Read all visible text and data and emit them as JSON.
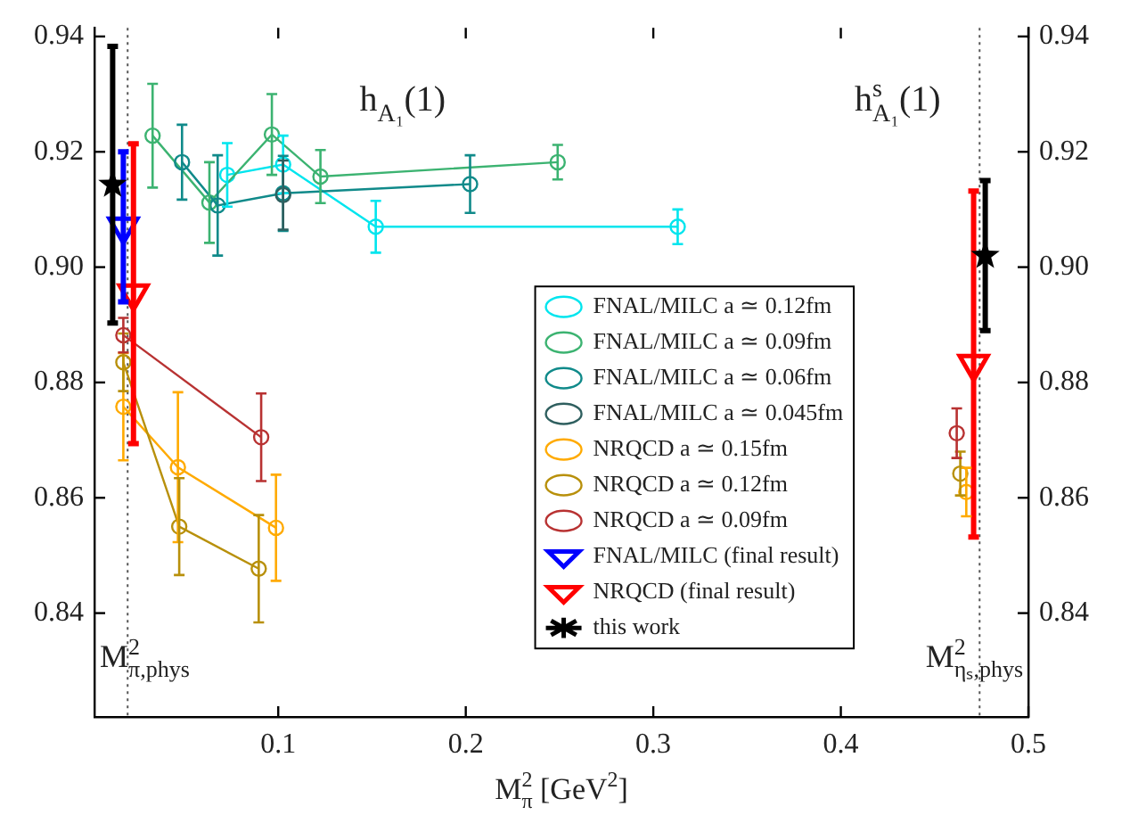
{
  "chart_data": {
    "type": "line",
    "xlabel": "M$^{2}$$_{π}$ [GeV$^{2}$]",
    "xlim": [
      0.002,
      0.5
    ],
    "xticks": [
      0.1,
      0.2,
      0.3,
      0.4,
      0.5
    ],
    "ylim": [
      0.822,
      0.9415
    ],
    "yticks": [
      0.84,
      0.86,
      0.88,
      {
        "value": 0.9,
        "label": "0.90"
      },
      0.92,
      0.94
    ],
    "y2lim": [
      0.822,
      0.9415
    ],
    "y2ticks": [
      0.84,
      0.86,
      0.88,
      {
        "value": 0.9,
        "label": "0.90"
      },
      0.92,
      0.94
    ],
    "grid": false,
    "legend": "center right",
    "annotations": [
      "h$_{A₁}$(1)",
      "h$^{s}$$_{A₁}$(1)"
    ],
    "ref_lines": [
      {
        "axis": "x",
        "value": 0.0197,
        "label": "M$^{2}$$_{π,phys}$",
        "color": "#555555",
        "line_style": "dotted"
      },
      {
        "axis": "x",
        "value": 0.474,
        "label": "M$^{2}$$_{ηₛ,phys}$",
        "color": "#555555",
        "line_style": "dotted"
      }
    ],
    "series": [
      {
        "name": "FNAL/MILC a ≃ 0.12fm",
        "marker": "circle",
        "color": "#00e5ee",
        "x": [
          0.0728,
          0.1026,
          0.152,
          0.313
        ],
        "values": [
          0.916,
          0.9178,
          0.907,
          0.907
        ],
        "errors": [
          0.0055,
          0.005,
          0.0045,
          0.003
        ]
      },
      {
        "name": "FNAL/MILC a ≃ 0.09fm",
        "marker": "circle",
        "color": "#3cb371",
        "x": [
          0.033,
          0.0633,
          0.0966,
          0.1225,
          0.249
        ],
        "values": [
          0.9228,
          0.9112,
          0.923,
          0.9157,
          0.9182
        ],
        "errors": [
          0.009,
          0.007,
          0.007,
          0.0046,
          0.003
        ]
      },
      {
        "name": "FNAL/MILC a ≃ 0.06fm",
        "marker": "circle",
        "color": "#108a8a",
        "x": [
          0.0487,
          0.0677,
          0.1026,
          0.2023
        ],
        "values": [
          0.9182,
          0.9107,
          0.9128,
          0.9144
        ],
        "errors": [
          0.0065,
          0.0087,
          0.0065,
          0.005
        ]
      },
      {
        "name": "FNAL/MILC a ≃ 0.045fm",
        "marker": "circle",
        "color": "#2f5f5f",
        "x": [
          0.1026
        ],
        "values": [
          0.9125
        ],
        "errors": [
          0.006
        ]
      },
      {
        "name": "NRQCD a ≃ 0.15fm",
        "marker": "circle",
        "color": "#ffaa00",
        "x": [
          0.0174,
          0.0465,
          0.0988
        ],
        "values": [
          0.8758,
          0.8653,
          0.8548
        ],
        "errors": [
          0.0093,
          0.013,
          0.0092
        ]
      },
      {
        "name": "NRQCD a ≃ 0.12fm",
        "marker": "circle",
        "color": "#b8900b",
        "x": [
          0.0174,
          0.0472,
          0.0896
        ],
        "values": [
          0.8835,
          0.855,
          0.8477
        ],
        "errors": [
          0.005,
          0.0084,
          0.0093
        ]
      },
      {
        "name": "NRQCD a ≃ 0.09fm",
        "marker": "circle",
        "color": "#b83232",
        "x": [
          0.0174,
          0.0909
        ],
        "values": [
          0.8882,
          0.8705
        ],
        "errors": [
          0.003,
          0.0076
        ]
      },
      {
        "name": "FNAL/MILC (final result)",
        "type": "scatter",
        "marker": "triangle",
        "color": "#0000ff",
        "x": [
          0.0174
        ],
        "values": [
          0.907
        ],
        "errors": [
          0.013
        ]
      },
      {
        "name": "NRQCD (final result)",
        "type": "scatter",
        "marker": "triangle",
        "color": "#ff0000",
        "x": [
          0.0228,
          0.4708
        ],
        "values": [
          0.8954,
          0.8832
        ],
        "errors": [
          0.026,
          0.03
        ]
      },
      {
        "name": "this work",
        "type": "scatter",
        "marker": "star",
        "color": "#000000",
        "x": [
          0.0117,
          0.477
        ],
        "values": [
          0.9143,
          0.902
        ],
        "errors": [
          0.024,
          0.013
        ]
      },
      {
        "type": "scatter",
        "marker": "circle",
        "color": "#ffaa00",
        "x": [
          0.4669
        ],
        "values": [
          0.861
        ],
        "errors": [
          0.0042
        ]
      },
      {
        "type": "scatter",
        "marker": "circle",
        "color": "#b8900b",
        "x": [
          0.4637
        ],
        "values": [
          0.8642
        ],
        "errors": [
          0.0038
        ]
      },
      {
        "type": "scatter",
        "marker": "circle",
        "color": "#b83232",
        "x": [
          0.4618
        ],
        "values": [
          0.8712
        ],
        "errors": [
          0.0043
        ]
      }
    ]
  }
}
